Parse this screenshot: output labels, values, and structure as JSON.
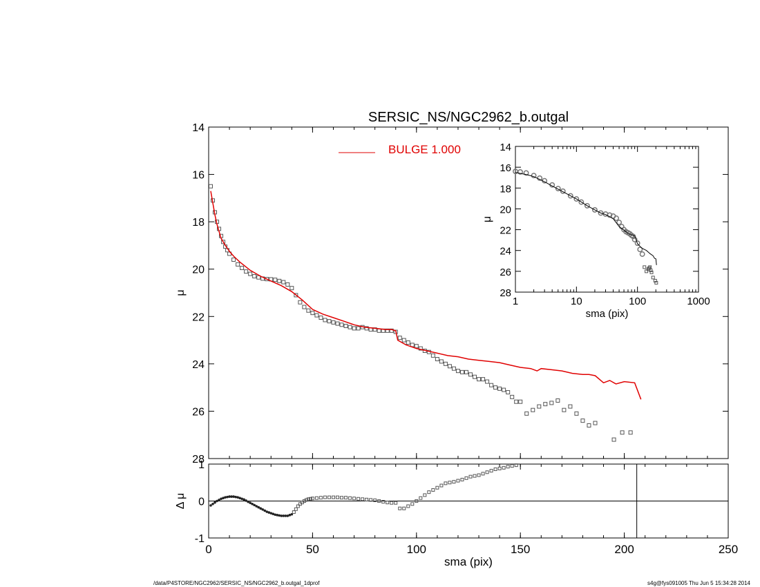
{
  "chart_data": [
    {
      "panel": "main",
      "type": "scatter",
      "title": "SERSIC_NS/NGC2962_b.outgal",
      "xlabel": "",
      "ylabel": "μ",
      "xlim": [
        0,
        250
      ],
      "ylim": [
        28,
        14
      ],
      "y_inverted": true,
      "xticks": [
        0,
        50,
        100,
        150,
        200,
        250
      ],
      "xtick_labels": [
        "",
        "",
        "",
        "",
        "",
        ""
      ],
      "yticks": [
        14,
        16,
        18,
        20,
        22,
        24,
        26,
        28
      ],
      "ytick_labels": [
        "14",
        "16",
        "18",
        "20",
        "22",
        "24",
        "26",
        "28"
      ],
      "legend": {
        "label": "BULGE  1.000",
        "color": "#e00000",
        "placement": "top-center"
      },
      "series": [
        {
          "role": "data",
          "marker": "square",
          "color": "#555555",
          "x": [
            1,
            2,
            3,
            4,
            5,
            6,
            7,
            8,
            9,
            10,
            12,
            14,
            16,
            18,
            20,
            22,
            24,
            26,
            28,
            30,
            32,
            34,
            36,
            38,
            40,
            42,
            44,
            46,
            48,
            50,
            52,
            54,
            56,
            58,
            60,
            62,
            64,
            66,
            68,
            70,
            72,
            74,
            76,
            78,
            80,
            82,
            84,
            86,
            88,
            90,
            92,
            94,
            96,
            98,
            100,
            102,
            104,
            106,
            108,
            110,
            112,
            114,
            116,
            118,
            120,
            122,
            124,
            126,
            128,
            130,
            132,
            134,
            136,
            138,
            140,
            142,
            144,
            146,
            148,
            150,
            153,
            156,
            159,
            162,
            165,
            168,
            171,
            174,
            177,
            180,
            183,
            186,
            195,
            199,
            203
          ],
          "y": [
            16.5,
            17.1,
            17.6,
            18.0,
            18.3,
            18.6,
            18.85,
            19.05,
            19.2,
            19.35,
            19.6,
            19.8,
            19.95,
            20.1,
            20.2,
            20.3,
            20.35,
            20.4,
            20.42,
            20.43,
            20.45,
            20.5,
            20.55,
            20.65,
            20.8,
            21.1,
            21.4,
            21.6,
            21.75,
            21.85,
            21.95,
            22.05,
            22.15,
            22.2,
            22.25,
            22.3,
            22.35,
            22.4,
            22.45,
            22.5,
            22.5,
            22.45,
            22.5,
            22.55,
            22.55,
            22.6,
            22.6,
            22.6,
            22.6,
            22.65,
            22.9,
            23.0,
            23.1,
            23.2,
            23.25,
            23.35,
            23.45,
            23.5,
            23.65,
            23.8,
            23.9,
            24.0,
            24.1,
            24.2,
            24.3,
            24.35,
            24.35,
            24.45,
            24.55,
            24.65,
            24.65,
            24.75,
            24.9,
            25.0,
            25.05,
            25.1,
            25.2,
            25.4,
            25.6,
            25.6,
            26.1,
            25.95,
            25.8,
            25.7,
            25.65,
            25.55,
            25.95,
            25.8,
            26.1,
            26.4,
            26.6,
            26.5,
            27.2,
            26.9,
            26.9
          ]
        },
        {
          "role": "model",
          "name": "BULGE  1.000",
          "color": "#e00000",
          "x": [
            1,
            2,
            3,
            4,
            5,
            6,
            8,
            10,
            12,
            15,
            20,
            25,
            30,
            35,
            40,
            45,
            50,
            55,
            60,
            65,
            70,
            75,
            80,
            85,
            88,
            90,
            91,
            95,
            100,
            105,
            110,
            115,
            120,
            125,
            130,
            135,
            140,
            145,
            150,
            155,
            158,
            160,
            165,
            170,
            175,
            180,
            183,
            186,
            190,
            193,
            196,
            200,
            205,
            208
          ],
          "y": [
            16.7,
            17.2,
            17.7,
            18.1,
            18.4,
            18.7,
            19.0,
            19.25,
            19.45,
            19.7,
            20.05,
            20.3,
            20.5,
            20.7,
            20.95,
            21.3,
            21.7,
            21.9,
            22.05,
            22.2,
            22.35,
            22.45,
            22.5,
            22.55,
            22.55,
            22.6,
            23.0,
            23.2,
            23.35,
            23.45,
            23.55,
            23.65,
            23.7,
            23.8,
            23.85,
            23.9,
            23.95,
            24.05,
            24.15,
            24.2,
            24.3,
            24.2,
            24.25,
            24.3,
            24.4,
            24.45,
            24.45,
            24.5,
            24.8,
            24.7,
            24.85,
            24.75,
            24.8,
            25.5
          ]
        }
      ]
    },
    {
      "panel": "inset",
      "type": "line",
      "xscale": "log",
      "xlim": [
        1,
        1000
      ],
      "ylim": [
        28,
        14
      ],
      "y_inverted": true,
      "xlabel": "sma (pix)",
      "ylabel": "μ",
      "xticks": [
        1,
        10,
        100,
        1000
      ],
      "xtick_labels": [
        "1",
        "10",
        "100",
        "1000"
      ],
      "yticks": [
        14,
        16,
        18,
        20,
        22,
        24,
        26,
        28
      ],
      "ytick_labels": [
        "14",
        "16",
        "18",
        "20",
        "22",
        "24",
        "26",
        "28"
      ],
      "series": [
        {
          "role": "data",
          "marker": "circle",
          "color": "#777777",
          "x": [
            1,
            1.2,
            1.5,
            2,
            2.5,
            3,
            4,
            5,
            6,
            8,
            10,
            12,
            15,
            20,
            25,
            30,
            35,
            40,
            45,
            50,
            55,
            60,
            65,
            70,
            75,
            80,
            85,
            90,
            100,
            110,
            120
          ],
          "y": [
            16.4,
            16.45,
            16.55,
            16.8,
            17.05,
            17.3,
            17.7,
            18.05,
            18.3,
            18.75,
            19.05,
            19.35,
            19.7,
            20.1,
            20.4,
            20.5,
            20.6,
            20.7,
            20.9,
            21.3,
            21.7,
            22.0,
            22.2,
            22.3,
            22.4,
            22.55,
            22.65,
            22.95,
            23.3,
            23.9,
            24.35
          ]
        },
        {
          "role": "model",
          "color": "#000000",
          "x": [
            1,
            1.5,
            2,
            3,
            4,
            5,
            6,
            8,
            10,
            15,
            20,
            25,
            30,
            35,
            40,
            50,
            60,
            70,
            80,
            90,
            100,
            110,
            120,
            130,
            140,
            150,
            160,
            180,
            190,
            200,
            205
          ],
          "y": [
            16.5,
            16.7,
            16.9,
            17.4,
            17.8,
            18.1,
            18.35,
            18.75,
            19.05,
            19.7,
            20.1,
            20.4,
            20.55,
            20.75,
            20.95,
            21.7,
            22.05,
            22.35,
            22.5,
            22.6,
            23.35,
            23.6,
            23.8,
            23.9,
            24.0,
            24.15,
            24.3,
            24.5,
            24.75,
            24.8,
            25.4
          ]
        },
        {
          "role": "data-outer",
          "marker": "square",
          "color": "#555555",
          "x": [
            130,
            140,
            150,
            155,
            160,
            165,
            170,
            180,
            195,
            203
          ],
          "y": [
            25.6,
            26.0,
            25.8,
            25.7,
            25.6,
            25.9,
            26.1,
            26.6,
            26.9,
            27.1
          ]
        }
      ]
    },
    {
      "panel": "residual",
      "type": "scatter",
      "xlabel": "sma (pix)",
      "ylabel": "Δ μ",
      "xlim": [
        0,
        250
      ],
      "ylim": [
        -1,
        1
      ],
      "xticks": [
        0,
        50,
        100,
        150,
        200,
        250
      ],
      "xtick_labels": [
        "0",
        "50",
        "100",
        "150",
        "200",
        "250"
      ],
      "yticks": [
        -1,
        0,
        1
      ],
      "ytick_labels": [
        "-1",
        "0",
        "1"
      ],
      "zero_line": true,
      "vertical_line_x": 206,
      "series": [
        {
          "role": "residual",
          "marker": "square",
          "color": "#555555",
          "x": [
            1,
            2,
            3,
            4,
            5,
            6,
            7,
            8,
            9,
            10,
            11,
            12,
            13,
            14,
            15,
            16,
            17,
            18,
            19,
            20,
            21,
            22,
            23,
            24,
            25,
            26,
            27,
            28,
            29,
            30,
            31,
            32,
            33,
            34,
            35,
            36,
            37,
            38,
            39,
            40,
            41,
            42,
            43,
            44,
            45,
            46,
            47,
            48,
            49,
            50,
            52,
            54,
            56,
            58,
            60,
            62,
            64,
            66,
            68,
            70,
            72,
            74,
            76,
            78,
            80,
            82,
            84,
            86,
            88,
            90,
            92,
            94,
            96,
            98,
            100,
            102,
            104,
            106,
            108,
            110,
            112,
            114,
            116,
            118,
            120,
            122,
            124,
            126,
            128,
            130,
            132,
            134,
            136,
            138,
            140,
            142,
            144,
            146,
            148
          ],
          "y": [
            -0.12,
            -0.08,
            -0.04,
            0.0,
            0.03,
            0.06,
            0.08,
            0.1,
            0.11,
            0.12,
            0.12,
            0.12,
            0.11,
            0.1,
            0.08,
            0.06,
            0.04,
            0.01,
            -0.02,
            -0.05,
            -0.08,
            -0.11,
            -0.14,
            -0.17,
            -0.2,
            -0.23,
            -0.26,
            -0.29,
            -0.31,
            -0.33,
            -0.35,
            -0.37,
            -0.38,
            -0.39,
            -0.4,
            -0.4,
            -0.4,
            -0.4,
            -0.38,
            -0.36,
            -0.3,
            -0.22,
            -0.14,
            -0.08,
            -0.04,
            0.0,
            0.03,
            0.05,
            0.06,
            0.07,
            0.08,
            0.09,
            0.1,
            0.1,
            0.1,
            0.1,
            0.09,
            0.09,
            0.08,
            0.07,
            0.06,
            0.05,
            0.04,
            0.03,
            0.02,
            0.0,
            -0.02,
            -0.04,
            -0.05,
            -0.05,
            -0.2,
            -0.2,
            -0.14,
            -0.08,
            0.0,
            0.08,
            0.16,
            0.24,
            0.3,
            0.36,
            0.42,
            0.48,
            0.5,
            0.52,
            0.55,
            0.58,
            0.62,
            0.66,
            0.68,
            0.7,
            0.74,
            0.78,
            0.82,
            0.86,
            0.88,
            0.9,
            0.93,
            0.95,
            0.97
          ]
        }
      ]
    }
  ],
  "footer": {
    "left": "/data/P4STORE/NGC2962/SERSIC_NS/NGC2962_b.outgal_1dprof",
    "right": "s4g@fys091005  Thu Jun  5 15:34:28 2014"
  }
}
